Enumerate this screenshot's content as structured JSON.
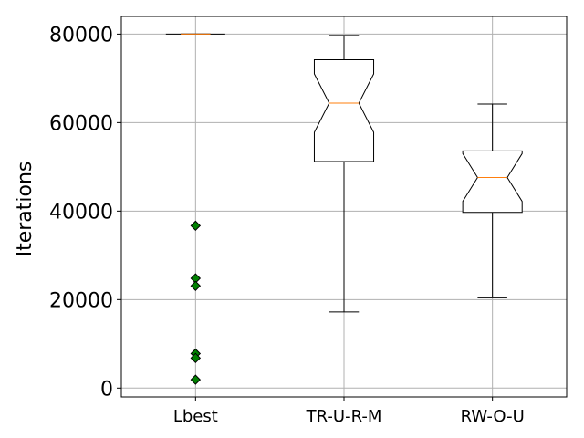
{
  "chart_data": {
    "type": "boxplot",
    "title": "",
    "xlabel": "",
    "ylabel": "Iterations",
    "ylim": [
      -2000,
      84000
    ],
    "yticks": [
      0,
      20000,
      40000,
      60000,
      80000
    ],
    "grid": true,
    "notched": true,
    "categories": [
      "Lbest",
      "TR-U-R-M",
      "RW-O-U"
    ],
    "boxes": [
      {
        "name": "Lbest",
        "whisker_low": 80000,
        "q1": 80000,
        "median": 80000,
        "q3": 80000,
        "whisker_high": 80000,
        "notch_low": 80000,
        "notch_high": 80000,
        "outliers": [
          36700,
          24800,
          23100,
          7800,
          6800,
          1900
        ]
      },
      {
        "name": "TR-U-R-M",
        "whisker_low": 17200,
        "q1": 51200,
        "median": 64400,
        "q3": 74200,
        "whisker_high": 79700,
        "notch_low": 57800,
        "notch_high": 71000,
        "outliers": []
      },
      {
        "name": "RW-O-U",
        "whisker_low": 20400,
        "q1": 39700,
        "median": 47600,
        "q3": 53600,
        "whisker_high": 64200,
        "notch_low": 42200,
        "notch_high": 53000,
        "outliers": []
      }
    ],
    "colors": {
      "box": "#000000",
      "median": "#ff7f0e",
      "outlier_fill": "#008000",
      "outlier_edge": "#000000",
      "grid": "#b0b0b0"
    }
  }
}
